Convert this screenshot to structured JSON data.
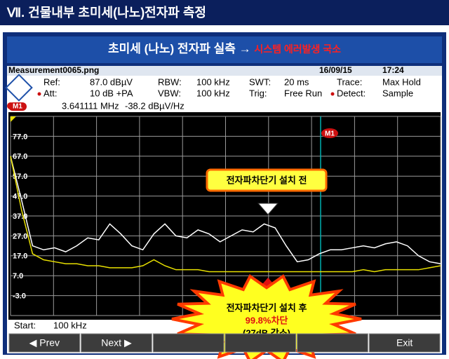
{
  "header": {
    "title": "Ⅶ. 건물내부 초미세(나노)전자파 측정"
  },
  "banner": {
    "title": "초미세 (나노) 전자파 실측 → ",
    "highlight": "시스템 에러발생 국소"
  },
  "instrument": {
    "file": "Measurement0065.png",
    "date": "16/09/15",
    "time": "17:24",
    "row1": [
      "Ref:",
      "87.0 dBµV",
      "RBW:",
      "100 kHz",
      "SWT:",
      "20 ms",
      "Trace:",
      "Max Hold"
    ],
    "row2": [
      "Att:",
      "10 dB +PA",
      "VBW:",
      "100 kHz",
      "Trig:",
      "Free Run",
      "Detect:",
      "Sample"
    ],
    "marker": {
      "label": "M1",
      "frequency": "3.641111 MHz",
      "level": "-38.2 dBµV/Hz"
    },
    "start": {
      "label": "Start:",
      "value": "100 kHz"
    },
    "buttons": [
      "◀ Prev",
      "Next ▶",
      "Exit"
    ]
  },
  "callouts": {
    "before": "전자파차단기 설치 전",
    "after": "전자파차단기 설치 후",
    "reduction": "99.8%차단",
    "detail": "(27dB 감소)"
  },
  "chart_data": {
    "type": "line",
    "ylim": [
      -13,
      87
    ],
    "yticks": [
      {
        "value": 77,
        "label": "77.0"
      },
      {
        "value": 67,
        "label": "67.0"
      },
      {
        "value": 57,
        "label": "57.0"
      },
      {
        "value": 47,
        "label": "47.0"
      },
      {
        "value": 37,
        "label": "37.0"
      },
      {
        "value": 27,
        "label": "27.0"
      },
      {
        "value": 17,
        "label": "17.0"
      },
      {
        "value": 7,
        "label": "7.0"
      },
      {
        "value": -3,
        "label": "-3.0"
      }
    ],
    "grid": true,
    "series": [
      {
        "color": "#ffffff",
        "values": [
          67,
          45,
          22,
          20,
          21,
          19,
          22,
          26,
          25,
          33,
          28,
          22,
          20,
          28,
          33,
          27,
          26,
          30,
          28,
          24,
          27,
          30,
          29,
          33,
          31,
          22,
          14,
          15,
          18,
          20,
          20,
          21,
          22,
          21,
          23,
          24,
          22,
          17,
          14,
          13
        ]
      },
      {
        "color": "#e8e000",
        "values": [
          67,
          40,
          18,
          15,
          14,
          13,
          13,
          12,
          12,
          11,
          11,
          11,
          12,
          15,
          12,
          10,
          10,
          10,
          9,
          9,
          9,
          9,
          9,
          9,
          9,
          9,
          9,
          9,
          9,
          9,
          9,
          9,
          10,
          9,
          10,
          10,
          10,
          10,
          11,
          12
        ]
      }
    ]
  }
}
